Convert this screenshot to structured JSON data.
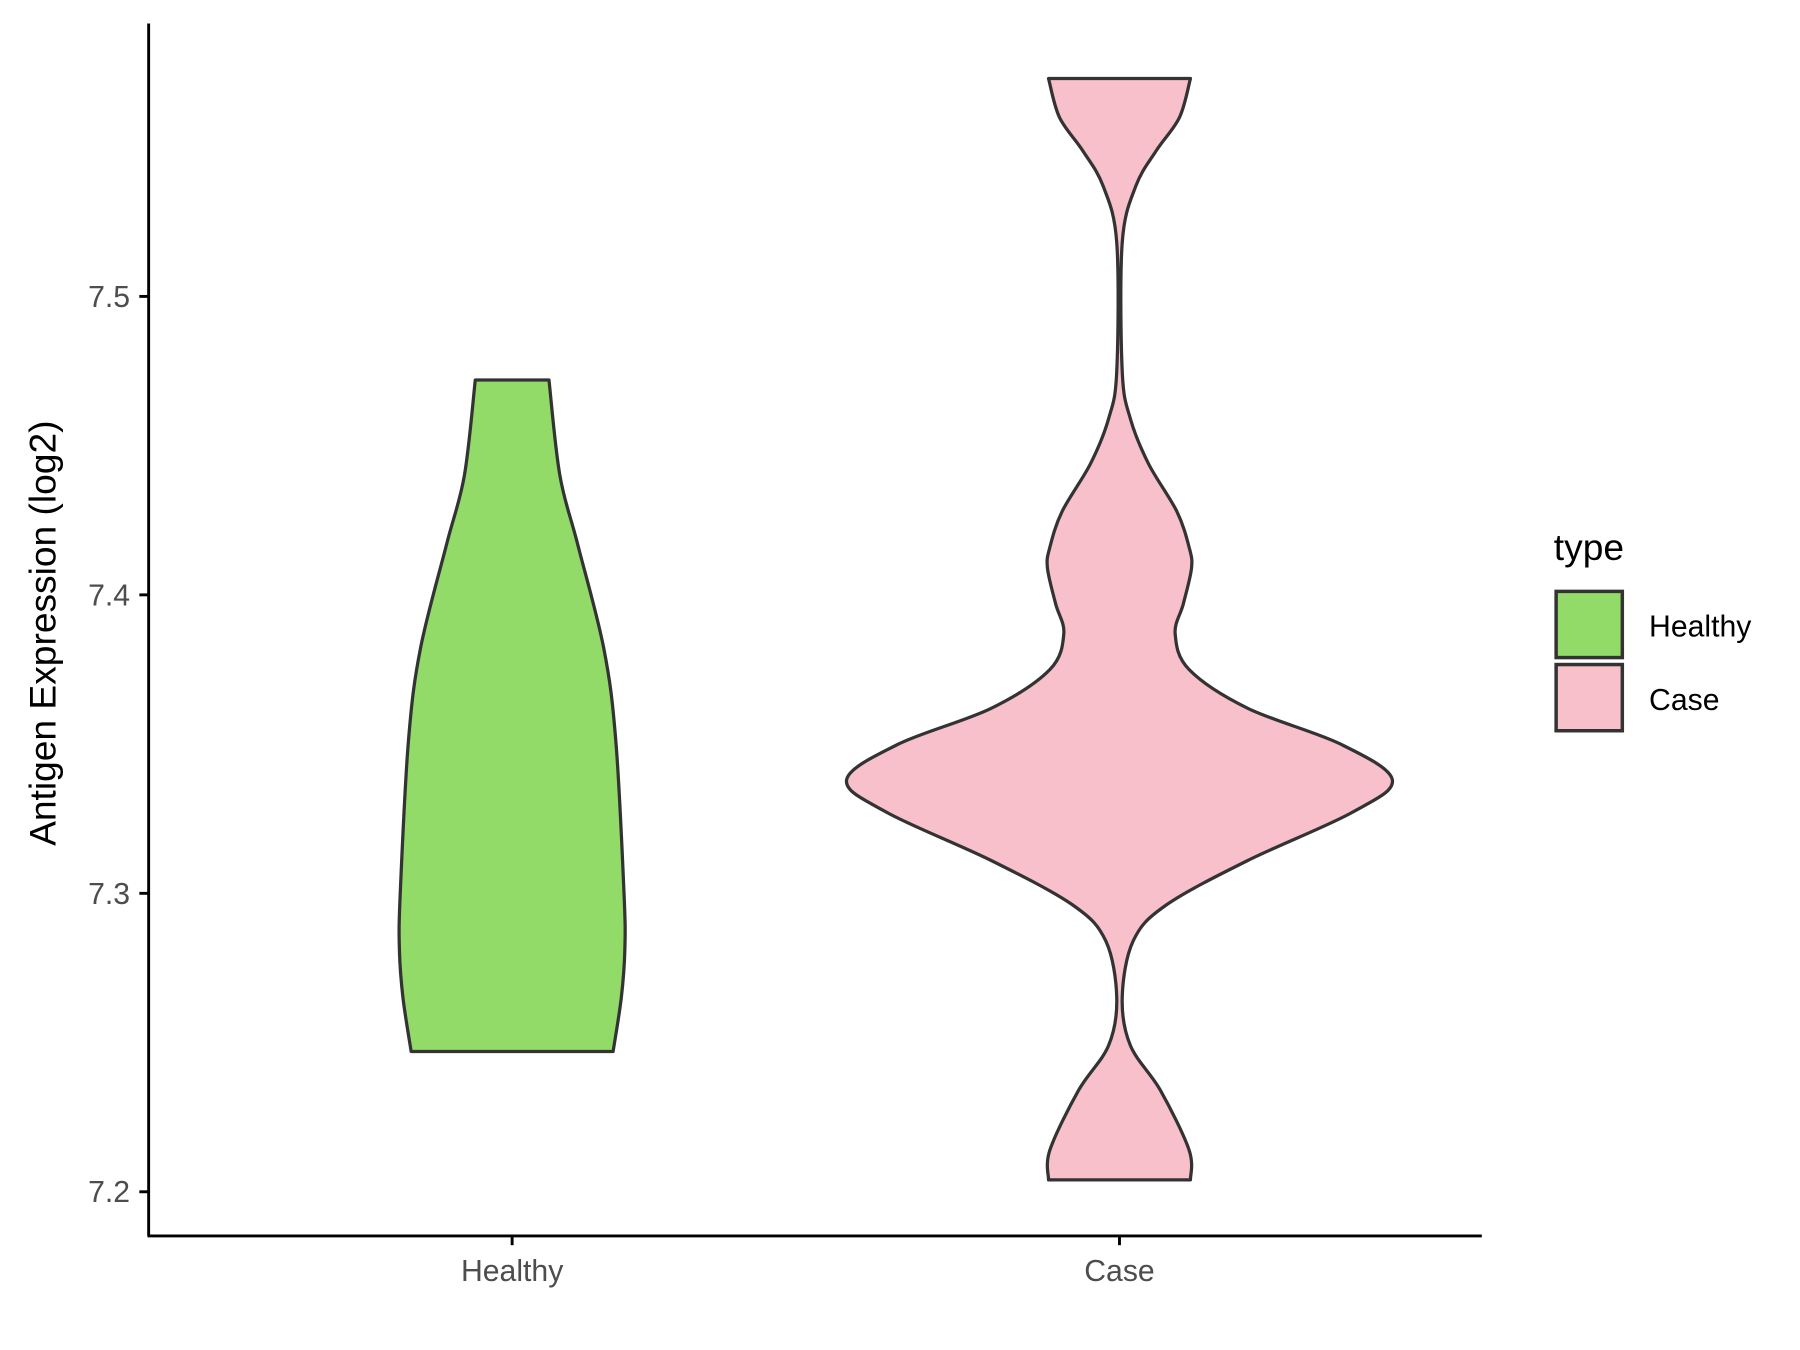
{
  "chart_data": {
    "type": "violin",
    "title": "",
    "xlabel": "",
    "ylabel": "Antigen Expression (log2)",
    "ylim": [
      7.185,
      7.585
    ],
    "yticks": [
      7.2,
      7.3,
      7.4,
      7.5
    ],
    "ytick_labels": [
      "7.2",
      "7.3",
      "7.4",
      "7.5"
    ],
    "categories": [
      "Healthy",
      "Case"
    ],
    "grid": false,
    "legend": {
      "title": "type",
      "position": "right",
      "entries": [
        "Healthy",
        "Case"
      ]
    },
    "series": [
      {
        "name": "Healthy",
        "color": "#93DB69",
        "min": 7.247,
        "max": 7.472,
        "profile": [
          [
            7.472,
            0.135
          ],
          [
            7.44,
            0.175
          ],
          [
            7.417,
            0.24
          ],
          [
            7.382,
            0.336
          ],
          [
            7.351,
            0.38
          ],
          [
            7.3,
            0.41
          ],
          [
            7.281,
            0.413
          ],
          [
            7.265,
            0.4
          ],
          [
            7.247,
            0.37
          ]
        ]
      },
      {
        "name": "Case",
        "color": "#F7C0CB",
        "min": 7.204,
        "max": 7.573,
        "profile": [
          [
            7.573,
            0.26
          ],
          [
            7.56,
            0.22
          ],
          [
            7.549,
            0.136
          ],
          [
            7.537,
            0.06
          ],
          [
            7.518,
            0.01
          ],
          [
            7.475,
            0.01
          ],
          [
            7.459,
            0.04
          ],
          [
            7.444,
            0.106
          ],
          [
            7.428,
            0.21
          ],
          [
            7.416,
            0.255
          ],
          [
            7.409,
            0.264
          ],
          [
            7.397,
            0.234
          ],
          [
            7.387,
            0.204
          ],
          [
            7.375,
            0.255
          ],
          [
            7.362,
            0.47
          ],
          [
            7.35,
            0.81
          ],
          [
            7.338,
            1.0
          ],
          [
            7.327,
            0.85
          ],
          [
            7.311,
            0.47
          ],
          [
            7.296,
            0.17
          ],
          [
            7.284,
            0.05
          ],
          [
            7.265,
            0.01
          ],
          [
            7.249,
            0.04
          ],
          [
            7.234,
            0.15
          ],
          [
            7.214,
            0.255
          ],
          [
            7.204,
            0.26
          ]
        ]
      }
    ]
  }
}
